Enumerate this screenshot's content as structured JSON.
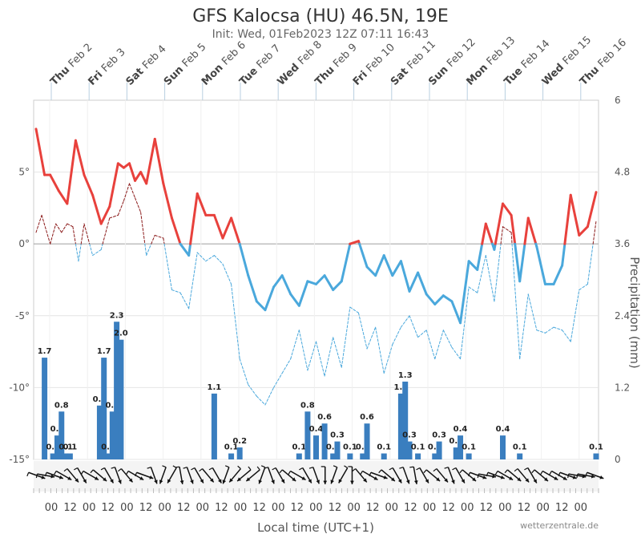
{
  "chart_data": {
    "type": "line",
    "title": "GFS Kalocsa (HU) 46.5N, 19E",
    "subtitle": "Init: Wed, 01Feb2023 12Z 07:11 16:43",
    "xlabel": "Local time (UTC+1)",
    "ylabel_right": "Precipitation (mm)",
    "credit": "wetterzentrale.de",
    "x_range_hours": [
      0,
      336
    ],
    "ylim_left": [
      -15,
      10
    ],
    "ylim_right": [
      0,
      6
    ],
    "yticks_left": [
      "5°",
      "0°",
      "-5°",
      "-10°",
      "-15°"
    ],
    "yticks_left_values": [
      5,
      0,
      -5,
      -10,
      -15
    ],
    "yticks_right": [
      "6",
      "4.8",
      "3.6",
      "2.4",
      "1.2",
      "0"
    ],
    "yticks_right_values": [
      6,
      4.8,
      3.6,
      2.4,
      1.2,
      0
    ],
    "grid": true,
    "dates": [
      {
        "day": "Thu",
        "date": "Feb 2"
      },
      {
        "day": "Fri",
        "date": "Feb 3"
      },
      {
        "day": "Sat",
        "date": "Feb 4"
      },
      {
        "day": "Sun",
        "date": "Feb 5"
      },
      {
        "day": "Mon",
        "date": "Feb 6"
      },
      {
        "day": "Tue",
        "date": "Feb 7"
      },
      {
        "day": "Wed",
        "date": "Feb 8"
      },
      {
        "day": "Thu",
        "date": "Feb 9"
      },
      {
        "day": "Fri",
        "date": "Feb 10"
      },
      {
        "day": "Sat",
        "date": "Feb 11"
      },
      {
        "day": "Sun",
        "date": "Feb 12"
      },
      {
        "day": "Mon",
        "date": "Feb 13"
      },
      {
        "day": "Tue",
        "date": "Feb 14"
      },
      {
        "day": "Wed",
        "date": "Feb 15"
      },
      {
        "day": "Thu",
        "date": "Feb 16"
      }
    ],
    "hour_ticks": [
      "00",
      "12",
      "00",
      "12",
      "00",
      "12",
      "00",
      "12",
      "00",
      "12",
      "00",
      "12",
      "00",
      "12",
      "00",
      "12",
      "00",
      "12",
      "00",
      "12",
      "00",
      "12",
      "00",
      "12",
      "00",
      "12",
      "00",
      "12",
      "00"
    ],
    "series": [
      {
        "color_warm": "#e8413c",
        "color_cold": "#4aa8dc",
        "style": "solid",
        "points": [
          [
            0,
            8
          ],
          [
            6,
            4.8
          ],
          [
            10,
            4.8
          ],
          [
            16,
            3.7
          ],
          [
            22,
            2.8
          ],
          [
            28,
            7.2
          ],
          [
            34,
            4.8
          ],
          [
            40,
            3.4
          ],
          [
            46,
            1.4
          ],
          [
            52,
            2.6
          ],
          [
            58,
            5.6
          ],
          [
            62,
            5.3
          ],
          [
            66,
            5.6
          ],
          [
            70,
            4.4
          ],
          [
            74,
            5.0
          ],
          [
            78,
            4.2
          ],
          [
            84,
            7.3
          ],
          [
            90,
            4.2
          ],
          [
            96,
            1.8
          ],
          [
            102,
            0
          ],
          [
            108,
            -0.8
          ],
          [
            114,
            3.5
          ],
          [
            120,
            2.0
          ],
          [
            126,
            2.0
          ],
          [
            132,
            0.4
          ],
          [
            138,
            1.8
          ],
          [
            144,
            0
          ],
          [
            150,
            -2.2
          ],
          [
            156,
            -4.0
          ],
          [
            162,
            -4.6
          ],
          [
            168,
            -3.0
          ],
          [
            174,
            -2.2
          ],
          [
            180,
            -3.5
          ],
          [
            186,
            -4.3
          ],
          [
            192,
            -2.6
          ],
          [
            198,
            -2.8
          ],
          [
            204,
            -2.2
          ],
          [
            210,
            -3.2
          ],
          [
            216,
            -2.6
          ],
          [
            222,
            0
          ],
          [
            228,
            0.2
          ],
          [
            234,
            -1.6
          ],
          [
            240,
            -2.2
          ],
          [
            246,
            -0.8
          ],
          [
            252,
            -2.2
          ],
          [
            258,
            -1.2
          ],
          [
            264,
            -3.3
          ],
          [
            270,
            -2.0
          ],
          [
            276,
            -3.5
          ],
          [
            282,
            -4.2
          ],
          [
            288,
            -3.6
          ],
          [
            294,
            -4.0
          ],
          [
            300,
            -5.5
          ],
          [
            306,
            -1.2
          ],
          [
            312,
            -1.8
          ],
          [
            318,
            1.4
          ],
          [
            324,
            -0.4
          ],
          [
            330,
            2.8
          ],
          [
            336,
            2.0
          ],
          [
            342,
            -2.6
          ],
          [
            348,
            1.8
          ],
          [
            354,
            -0.2
          ],
          [
            360,
            -2.8
          ],
          [
            366,
            -2.8
          ],
          [
            372,
            -1.5
          ],
          [
            378,
            3.4
          ],
          [
            384,
            0.6
          ],
          [
            390,
            1.2
          ],
          [
            396,
            3.6
          ]
        ]
      },
      {
        "color_warm": "#8b1a1a",
        "color_cold": "#4aa8dc",
        "style": "dashed",
        "points": [
          [
            0,
            0.8
          ],
          [
            4,
            2.0
          ],
          [
            10,
            0
          ],
          [
            14,
            1.4
          ],
          [
            18,
            0.8
          ],
          [
            22,
            1.4
          ],
          [
            26,
            1.2
          ],
          [
            30,
            -1.2
          ],
          [
            34,
            1.4
          ],
          [
            40,
            -0.8
          ],
          [
            46,
            -0.4
          ],
          [
            52,
            1.8
          ],
          [
            58,
            2.0
          ],
          [
            62,
            3.0
          ],
          [
            66,
            4.2
          ],
          [
            70,
            3.2
          ],
          [
            74,
            2.2
          ],
          [
            78,
            -0.8
          ],
          [
            84,
            0.6
          ],
          [
            90,
            0.4
          ],
          [
            96,
            -3.2
          ],
          [
            102,
            -3.4
          ],
          [
            108,
            -4.5
          ],
          [
            114,
            -0.6
          ],
          [
            120,
            -1.2
          ],
          [
            126,
            -0.8
          ],
          [
            132,
            -1.4
          ],
          [
            138,
            -2.8
          ],
          [
            144,
            -8.0
          ],
          [
            150,
            -9.8
          ],
          [
            156,
            -10.6
          ],
          [
            162,
            -11.2
          ],
          [
            168,
            -10.0
          ],
          [
            174,
            -9.0
          ],
          [
            180,
            -8.0
          ],
          [
            186,
            -6.0
          ],
          [
            192,
            -8.8
          ],
          [
            198,
            -6.8
          ],
          [
            204,
            -9.2
          ],
          [
            210,
            -6.5
          ],
          [
            216,
            -8.6
          ],
          [
            222,
            -4.4
          ],
          [
            228,
            -4.8
          ],
          [
            234,
            -7.3
          ],
          [
            240,
            -5.8
          ],
          [
            246,
            -9.0
          ],
          [
            252,
            -7.0
          ],
          [
            258,
            -5.8
          ],
          [
            264,
            -5.0
          ],
          [
            270,
            -6.5
          ],
          [
            276,
            -6.0
          ],
          [
            282,
            -8.0
          ],
          [
            288,
            -6.0
          ],
          [
            294,
            -7.2
          ],
          [
            300,
            -8.0
          ],
          [
            306,
            -3.0
          ],
          [
            312,
            -3.4
          ],
          [
            318,
            -0.8
          ],
          [
            324,
            -4.0
          ],
          [
            330,
            1.2
          ],
          [
            336,
            0.8
          ],
          [
            342,
            -8.0
          ],
          [
            348,
            -3.5
          ],
          [
            354,
            -6.0
          ],
          [
            360,
            -6.2
          ],
          [
            366,
            -5.8
          ],
          [
            372,
            -6.0
          ],
          [
            378,
            -6.8
          ],
          [
            384,
            -3.2
          ],
          [
            390,
            -2.8
          ],
          [
            396,
            1.6
          ]
        ]
      }
    ],
    "precipitation": [
      {
        "h": 6,
        "v": 1.7,
        "label": "1.7"
      },
      {
        "h": 12,
        "v": 0.1,
        "label": "0.1"
      },
      {
        "h": 15,
        "v": 0.4,
        "label": "0.4"
      },
      {
        "h": 18,
        "v": 0.8,
        "label": "0.8"
      },
      {
        "h": 21,
        "v": 0.1,
        "label": "0.1"
      },
      {
        "h": 24,
        "v": 0.1,
        "label": "0.1"
      },
      {
        "h": 45,
        "v": 0.9,
        "label": "0.9"
      },
      {
        "h": 48,
        "v": 1.7,
        "label": "1.7"
      },
      {
        "h": 51,
        "v": 0.1,
        "label": "0.1"
      },
      {
        "h": 54,
        "v": 0.8,
        "label": "0.8"
      },
      {
        "h": 57,
        "v": 2.3,
        "label": "2.3"
      },
      {
        "h": 60,
        "v": 2.0,
        "label": "2.0"
      },
      {
        "h": 126,
        "v": 1.1,
        "label": "1.1"
      },
      {
        "h": 138,
        "v": 0.1,
        "label": "0.1"
      },
      {
        "h": 144,
        "v": 0.2,
        "label": "0.2"
      },
      {
        "h": 186,
        "v": 0.1,
        "label": "0.1"
      },
      {
        "h": 192,
        "v": 0.8,
        "label": "0.8"
      },
      {
        "h": 198,
        "v": 0.4,
        "label": "0.4"
      },
      {
        "h": 204,
        "v": 0.6,
        "label": "0.6"
      },
      {
        "h": 210,
        "v": 0.1,
        "label": "0.1"
      },
      {
        "h": 213,
        "v": 0.3,
        "label": "0.3"
      },
      {
        "h": 222,
        "v": 0.1,
        "label": "0.1"
      },
      {
        "h": 231,
        "v": 0.1,
        "label": "0.1"
      },
      {
        "h": 234,
        "v": 0.6,
        "label": "0.6"
      },
      {
        "h": 246,
        "v": 0.1,
        "label": "0.1"
      },
      {
        "h": 258,
        "v": 1.1,
        "label": "1.1"
      },
      {
        "h": 261,
        "v": 1.3,
        "label": "1.3"
      },
      {
        "h": 264,
        "v": 0.3,
        "label": "0.3"
      },
      {
        "h": 270,
        "v": 0.1,
        "label": "0.1"
      },
      {
        "h": 282,
        "v": 0.1,
        "label": "0.1"
      },
      {
        "h": 285,
        "v": 0.3,
        "label": "0.3"
      },
      {
        "h": 297,
        "v": 0.2,
        "label": "0.2"
      },
      {
        "h": 300,
        "v": 0.4,
        "label": "0.4"
      },
      {
        "h": 306,
        "v": 0.1,
        "label": "0.1"
      },
      {
        "h": 330,
        "v": 0.4,
        "label": "0.4"
      },
      {
        "h": 342,
        "v": 0.1,
        "label": "0.1"
      },
      {
        "h": 396,
        "v": 0.1,
        "label": "0.1"
      }
    ],
    "bar_color": "#3a7ebf",
    "wind_arrow_directions_deg": [
      110,
      100,
      110,
      120,
      140,
      150,
      120,
      130,
      150,
      160,
      140,
      120,
      110,
      160,
      200,
      210,
      170,
      160,
      150,
      140,
      150,
      200,
      220,
      230,
      230,
      200,
      160,
      150,
      130,
      120,
      150,
      160,
      180,
      200,
      210,
      180,
      140,
      120,
      110,
      130,
      150,
      160,
      170,
      150,
      130,
      140,
      160,
      150,
      130,
      110,
      100,
      110,
      120,
      130,
      140,
      150,
      130,
      120,
      120,
      110,
      100,
      100,
      110
    ]
  }
}
